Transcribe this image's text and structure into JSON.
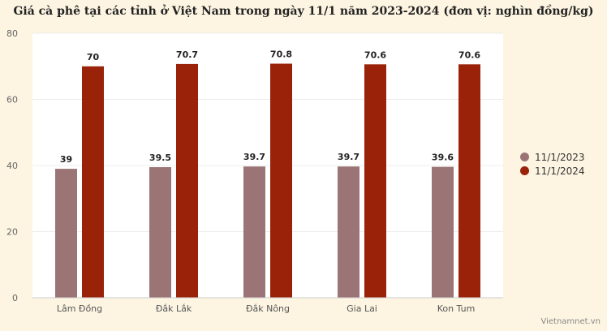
{
  "chart_data": {
    "type": "bar",
    "title": "Giá cà phê tại các tỉnh ở Việt Nam trong ngày 11/1 năm 2023-2024 (đơn vị: nghìn đồng/kg)",
    "categories": [
      "Lâm Đồng",
      "Đắk Lắk",
      "Đắk Nông",
      "Gia Lai",
      "Kon Tum"
    ],
    "series": [
      {
        "name": "11/1/2023",
        "values": [
          39,
          39.5,
          39.7,
          39.7,
          39.6
        ],
        "color": "#9b7575"
      },
      {
        "name": "11/1/2024",
        "values": [
          70,
          70.7,
          70.8,
          70.6,
          70.6
        ],
        "color": "#9a2208"
      }
    ],
    "ylim": [
      0,
      80
    ],
    "yticks": [
      0,
      20,
      40,
      60,
      80
    ],
    "grid": true,
    "legend_position": "right"
  },
  "source": "Vietnamnet.vn",
  "colors": {
    "background": "#fdf5e2",
    "plot_background": "#ffffff"
  }
}
